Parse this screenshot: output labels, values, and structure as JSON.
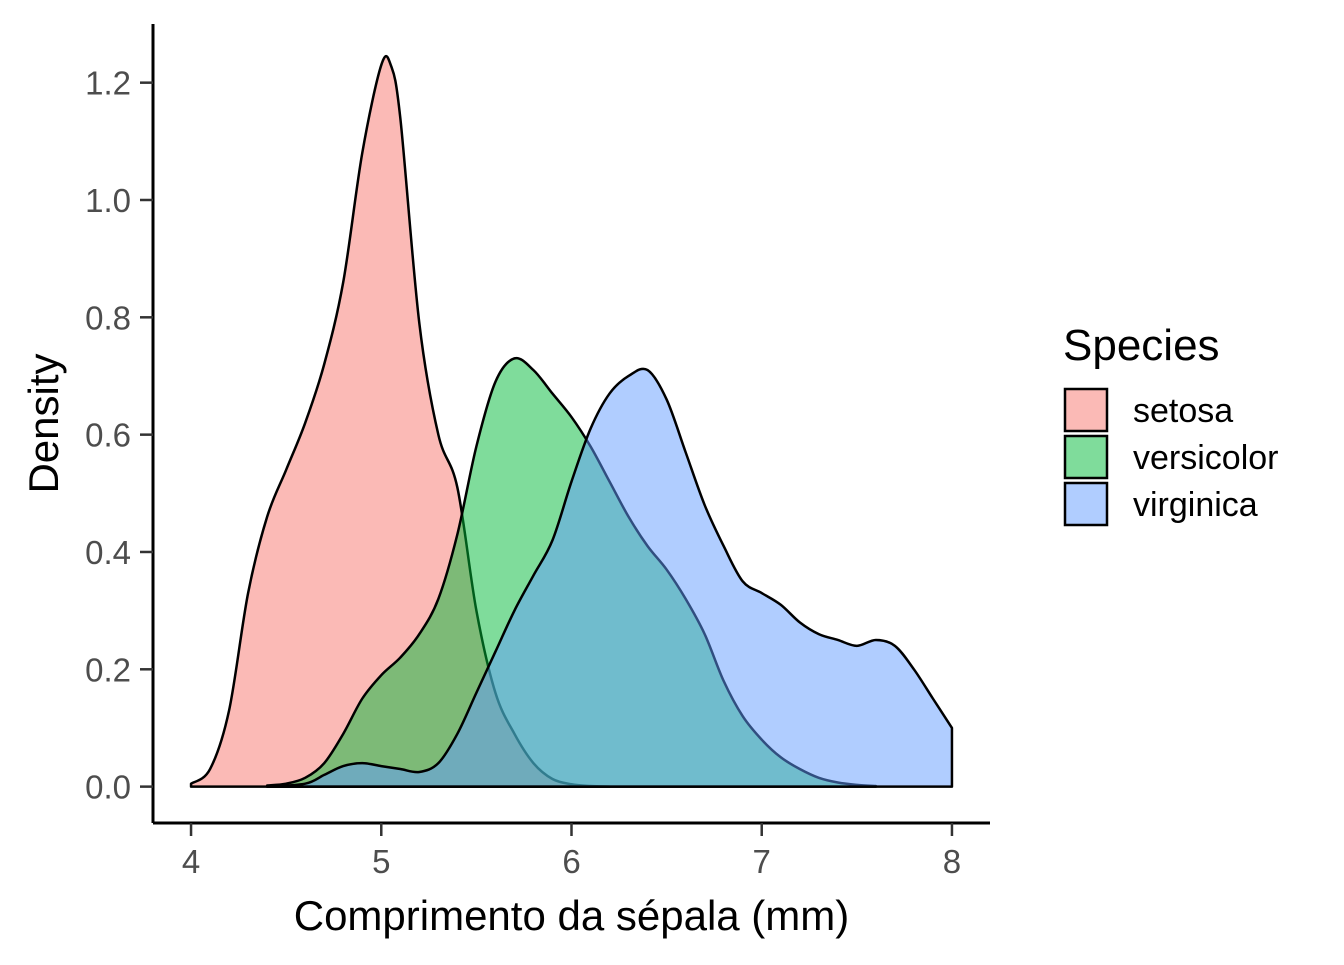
{
  "chart_data": {
    "type": "area",
    "subtype": "density",
    "title": "",
    "xlabel": "Comprimento da sépala (mm)",
    "ylabel": "Density",
    "xlim": [
      3.8,
      8.2
    ],
    "ylim": [
      -0.062,
      1.3
    ],
    "x_ticks": [
      4,
      5,
      6,
      7,
      8
    ],
    "x_tick_labels": [
      "4",
      "5",
      "6",
      "7",
      "8"
    ],
    "y_ticks": [
      0,
      0.2,
      0.4,
      0.6,
      0.8,
      1.0,
      1.2
    ],
    "y_tick_labels": [
      "0.0",
      "0.2",
      "0.4",
      "0.6",
      "0.8",
      "1.0",
      "1.2"
    ],
    "grid": false,
    "legend": {
      "title": "Species",
      "position": "right"
    },
    "series": [
      {
        "name": "setosa",
        "color": "#F8766D",
        "x": [
          4.0,
          4.1,
          4.2,
          4.3,
          4.4,
          4.5,
          4.6,
          4.7,
          4.8,
          4.9,
          5.0,
          5.05,
          5.1,
          5.2,
          5.3,
          5.4,
          5.5,
          5.6,
          5.7,
          5.8,
          5.9,
          6.0,
          6.1,
          6.2
        ],
        "values": [
          0.005,
          0.03,
          0.13,
          0.33,
          0.46,
          0.54,
          0.62,
          0.72,
          0.86,
          1.08,
          1.23,
          1.23,
          1.14,
          0.79,
          0.6,
          0.51,
          0.3,
          0.16,
          0.09,
          0.04,
          0.013,
          0.004,
          0.001,
          0.0
        ]
      },
      {
        "name": "versicolor",
        "color": "#00BA38",
        "x": [
          4.4,
          4.5,
          4.6,
          4.7,
          4.8,
          4.9,
          5.0,
          5.1,
          5.2,
          5.3,
          5.4,
          5.5,
          5.6,
          5.7,
          5.8,
          5.9,
          6.0,
          6.1,
          6.2,
          6.3,
          6.4,
          6.5,
          6.6,
          6.7,
          6.8,
          6.9,
          7.0,
          7.1,
          7.2,
          7.3,
          7.4,
          7.5,
          7.6
        ],
        "values": [
          0.002,
          0.005,
          0.015,
          0.04,
          0.09,
          0.15,
          0.19,
          0.22,
          0.26,
          0.32,
          0.43,
          0.58,
          0.69,
          0.73,
          0.71,
          0.67,
          0.63,
          0.58,
          0.52,
          0.46,
          0.41,
          0.37,
          0.32,
          0.26,
          0.18,
          0.12,
          0.08,
          0.05,
          0.03,
          0.015,
          0.007,
          0.003,
          0.001
        ]
      },
      {
        "name": "virginica",
        "color": "#619CFF",
        "x": [
          4.4,
          4.6,
          4.7,
          4.8,
          4.9,
          5.0,
          5.1,
          5.2,
          5.3,
          5.4,
          5.5,
          5.6,
          5.7,
          5.8,
          5.9,
          6.0,
          6.1,
          6.2,
          6.3,
          6.4,
          6.5,
          6.6,
          6.7,
          6.8,
          6.9,
          7.0,
          7.1,
          7.2,
          7.3,
          7.4,
          7.5,
          7.6,
          7.7,
          7.8,
          7.9,
          8.0
        ],
        "values": [
          0.0,
          0.005,
          0.02,
          0.035,
          0.04,
          0.035,
          0.03,
          0.025,
          0.04,
          0.09,
          0.16,
          0.23,
          0.3,
          0.36,
          0.42,
          0.52,
          0.61,
          0.67,
          0.7,
          0.71,
          0.66,
          0.57,
          0.48,
          0.41,
          0.35,
          0.33,
          0.31,
          0.28,
          0.26,
          0.25,
          0.24,
          0.25,
          0.24,
          0.2,
          0.15,
          0.1
        ]
      }
    ]
  }
}
